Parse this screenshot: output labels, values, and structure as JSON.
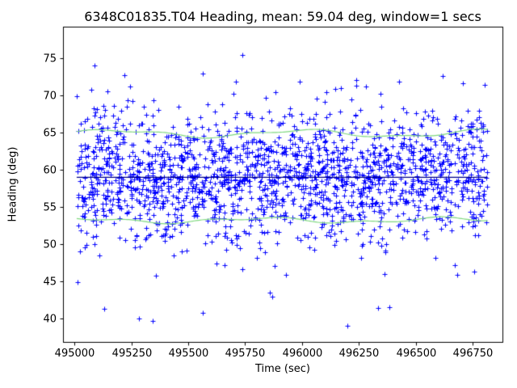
{
  "chart_data": {
    "type": "scatter",
    "title": "6348C01835.T04 Heading, mean: 59.04 deg, window=1 secs",
    "xlabel": "Time (sec)",
    "ylabel": "Heading (deg)",
    "xlim": [
      494950,
      496880
    ],
    "ylim": [
      36.8,
      79.3
    ],
    "xticks": [
      495000,
      495250,
      495500,
      495750,
      496000,
      496250,
      496500,
      496750
    ],
    "yticks": [
      40,
      45,
      50,
      55,
      60,
      65,
      70,
      75
    ],
    "grid": false,
    "legend": "none",
    "scatter": {
      "marker": "+",
      "color": "#0000ff",
      "n_points": 1900,
      "seed": 1835,
      "x_min": 495010,
      "x_max": 496815,
      "y_mean": 59.04,
      "y_std": 4.2,
      "y_std_outlier": 7.5,
      "outlier_frac": 0.1,
      "y_min_observed": 38.9,
      "y_max_observed": 77.5
    },
    "mean_line": {
      "y": 59.04,
      "color": "#00008b"
    },
    "envelope": {
      "upper_mean": 64.9,
      "lower_mean": 53.2,
      "color": "#7fd87f"
    }
  }
}
